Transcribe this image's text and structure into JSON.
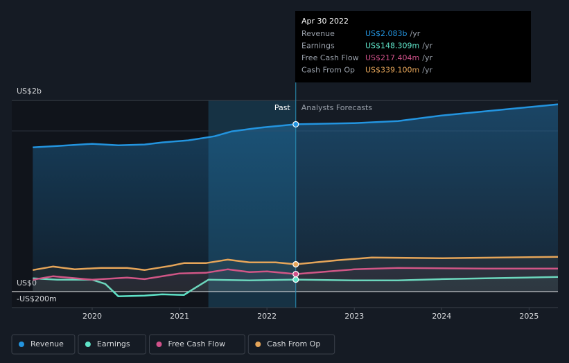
{
  "chart_data": {
    "type": "line",
    "xlim": [
      2019.08,
      2025.33
    ],
    "xticks": [
      2020,
      2021,
      2022,
      2023,
      2024,
      2025
    ],
    "ylim": [
      -200,
      2380
    ],
    "yticks": [
      {
        "value": -200,
        "label": "-US$200m"
      },
      {
        "value": 0,
        "label": "US$0"
      },
      {
        "value": 2000,
        "label": "US$2b"
      }
    ],
    "grid": true,
    "past_until": 2022.33,
    "forecast_from": 2021.33,
    "annotations": [
      "Past",
      "Analysts Forecasts"
    ],
    "series": [
      {
        "name": "Revenue",
        "color": "#2394df",
        "x": [
          2019.32,
          2019.6,
          2020.0,
          2020.3,
          2020.6,
          2020.8,
          2021.1,
          2021.4,
          2021.6,
          2021.9,
          2022.33,
          2023.0,
          2023.5,
          2024.0,
          2024.5,
          2025.0,
          2025.33
        ],
        "values": [
          1796,
          1813,
          1840,
          1822,
          1831,
          1857,
          1883,
          1934,
          1995,
          2038,
          2083,
          2098,
          2124,
          2193,
          2245,
          2297,
          2332
        ]
      },
      {
        "name": "Earnings",
        "color": "#5fe3c8",
        "x": [
          2019.32,
          2019.6,
          2020.0,
          2020.15,
          2020.3,
          2020.6,
          2020.8,
          2021.05,
          2021.15,
          2021.33,
          2021.8,
          2022.33,
          2023.0,
          2023.5,
          2024.0,
          2024.5,
          2025.33
        ],
        "values": [
          164,
          147,
          147,
          95,
          -60,
          -52,
          -35,
          -43,
          26,
          147,
          138,
          148.309,
          138,
          138,
          155,
          164,
          181
        ]
      },
      {
        "name": "Free Cash Flow",
        "color": "#d0518a",
        "x": [
          2019.32,
          2019.55,
          2020.0,
          2020.4,
          2020.6,
          2021.0,
          2021.3,
          2021.55,
          2021.8,
          2022.0,
          2022.33,
          2023.0,
          2023.5,
          2024.5,
          2025.33
        ],
        "values": [
          147,
          190,
          147,
          173,
          155,
          225,
          233,
          276,
          242,
          250,
          217.404,
          276,
          294,
          285,
          285
        ]
      },
      {
        "name": "Cash From Op",
        "color": "#e5a559",
        "x": [
          2019.32,
          2019.55,
          2019.8,
          2020.1,
          2020.4,
          2020.6,
          2020.9,
          2021.05,
          2021.3,
          2021.55,
          2021.8,
          2022.1,
          2022.33,
          2022.8,
          2023.2,
          2024.0,
          2025.33
        ],
        "values": [
          268,
          311,
          276,
          294,
          294,
          268,
          320,
          354,
          354,
          397,
          363,
          363,
          339.1,
          389,
          423,
          415,
          432
        ]
      }
    ]
  },
  "tooltip": {
    "date": "Apr 30 2022",
    "rows": [
      {
        "label": "Revenue",
        "value": "US$2.083b",
        "unit": "/yr"
      },
      {
        "label": "Earnings",
        "value": "US$148.309m",
        "unit": "/yr"
      },
      {
        "label": "Free Cash Flow",
        "value": "US$217.404m",
        "unit": "/yr"
      },
      {
        "label": "Cash From Op",
        "value": "US$339.100m",
        "unit": "/yr"
      }
    ]
  }
}
